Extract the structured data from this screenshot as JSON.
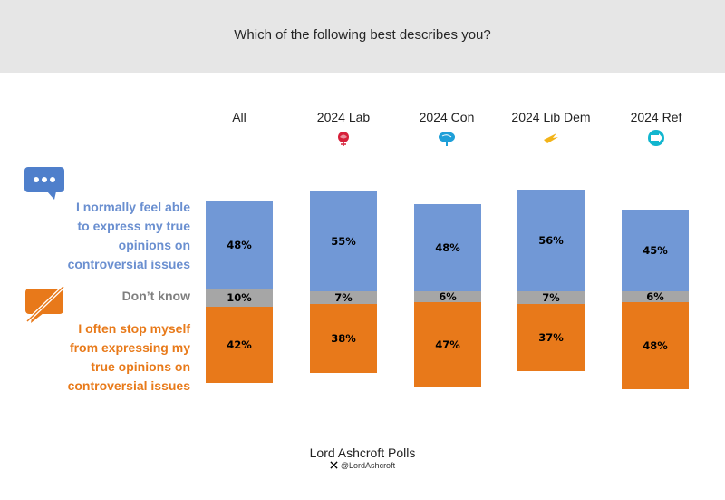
{
  "title": "Which of the following best describes you?",
  "legend": {
    "express": [
      "I normally feel able",
      "to express my true",
      "opinions on",
      "controversial issues"
    ],
    "dont_know": "Don’t know",
    "stop": [
      "I often stop myself",
      "from expressing my",
      "true opinions on",
      "controversial issues"
    ]
  },
  "icons": {
    "speech": "speech-bubble-icon",
    "muted": "muted-speech-icon",
    "lab": "labour-rose-icon",
    "con": "conservative-tree-icon",
    "libdem": "libdem-bird-icon",
    "ref": "reform-arrow-icon",
    "x": "x-logo-icon"
  },
  "colors": {
    "blue": "#7198d6",
    "grey": "#a6a6a6",
    "orange": "#e8791a",
    "header_bg": "#e6e6e6",
    "lab": "#d6203a",
    "con": "#1e9fd8",
    "libdem": "#f2b318",
    "ref": "#12b6cf"
  },
  "footer": {
    "source": "Lord Ashcroft Polls",
    "handle": "@LordAshcroft"
  },
  "chart_data": {
    "type": "bar",
    "stacked": true,
    "categories": [
      "All",
      "2024 Lab",
      "2024 Con",
      "2024 Lib Dem",
      "2024 Ref"
    ],
    "series": [
      {
        "name": "I normally feel able to express my true opinions on controversial issues",
        "values": [
          48,
          55,
          48,
          56,
          45
        ],
        "labels": [
          "48%",
          "55%",
          "48%",
          "56%",
          "45%"
        ]
      },
      {
        "name": "Don’t know",
        "values": [
          10,
          7,
          6,
          7,
          6
        ],
        "labels": [
          "10%",
          "7%",
          "6%",
          "7%",
          "6%"
        ]
      },
      {
        "name": "I often stop myself from expressing my true opinions on controversial issues",
        "values": [
          42,
          38,
          47,
          37,
          48
        ],
        "labels": [
          "42%",
          "38%",
          "47%",
          "37%",
          "48%"
        ]
      }
    ]
  }
}
